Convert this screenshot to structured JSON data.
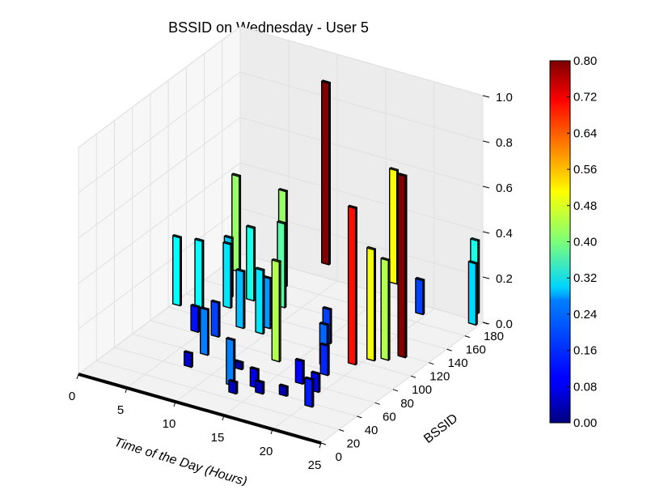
{
  "chart_data": {
    "type": "bar3d",
    "title": "BSSID on Wednesday - User 5",
    "xlabel": "Time of the Day (Hours)",
    "ylabel": "BSSID",
    "zlabel": "",
    "xlim": [
      0,
      25
    ],
    "ylim": [
      0,
      180
    ],
    "zlim": [
      0,
      1.0
    ],
    "xticks": [
      "0",
      "5",
      "10",
      "15",
      "20",
      "25"
    ],
    "yticks": [
      "0",
      "20",
      "40",
      "60",
      "80",
      "100",
      "120",
      "140",
      "160",
      "180"
    ],
    "zticks": [
      "0.0",
      "0.2",
      "0.4",
      "0.6",
      "0.8",
      "1.0"
    ],
    "colormap": "jet",
    "colorbar": {
      "min": 0.0,
      "max": 0.8,
      "ticks": [
        "0.00",
        "0.08",
        "0.16",
        "0.24",
        "0.32",
        "0.40",
        "0.48",
        "0.56",
        "0.64",
        "0.72",
        "0.80"
      ]
    },
    "bars": [
      {
        "x": 0,
        "y": 105,
        "z": 0.3
      },
      {
        "x": 1,
        "y": 160,
        "z": 0.42
      },
      {
        "x": 2,
        "y": 108,
        "z": 0.3
      },
      {
        "x": 3,
        "y": 130,
        "z": 0.26
      },
      {
        "x": 4,
        "y": 118,
        "z": 0.28
      },
      {
        "x": 4,
        "y": 82,
        "z": 0.11
      },
      {
        "x": 5,
        "y": 133,
        "z": 0.32
      },
      {
        "x": 6,
        "y": 158,
        "z": 0.42
      },
      {
        "x": 6,
        "y": 83,
        "z": 0.15
      },
      {
        "x": 7,
        "y": 100,
        "z": 0.25
      },
      {
        "x": 7,
        "y": 60,
        "z": 0.2
      },
      {
        "x": 7,
        "y": 195,
        "z": 0.8
      },
      {
        "x": 7,
        "y": 42,
        "z": 0.06
      },
      {
        "x": 8,
        "y": 135,
        "z": 0.37
      },
      {
        "x": 9,
        "y": 108,
        "z": 0.22
      },
      {
        "x": 9,
        "y": 100,
        "z": 0.28
      },
      {
        "x": 11,
        "y": 55,
        "z": 0.03
      },
      {
        "x": 12,
        "y": 35,
        "z": 0.2
      },
      {
        "x": 13,
        "y": 75,
        "z": 0.44
      },
      {
        "x": 13,
        "y": 27,
        "z": 0.05
      },
      {
        "x": 14,
        "y": 195,
        "z": 0.5
      },
      {
        "x": 14,
        "y": 40,
        "z": 0.08
      },
      {
        "x": 15,
        "y": 110,
        "z": 0.15
      },
      {
        "x": 15,
        "y": 35,
        "z": 0.05
      },
      {
        "x": 17,
        "y": 85,
        "z": 0.18
      },
      {
        "x": 17,
        "y": 58,
        "z": 0.1
      },
      {
        "x": 17,
        "y": 40,
        "z": 0.04
      },
      {
        "x": 18,
        "y": 75,
        "z": 0.13
      },
      {
        "x": 19,
        "y": 95,
        "z": 0.69
      },
      {
        "x": 19,
        "y": 170,
        "z": 0.15
      },
      {
        "x": 19,
        "y": 54,
        "z": 0.08
      },
      {
        "x": 20,
        "y": 105,
        "z": 0.49
      },
      {
        "x": 20,
        "y": 36,
        "z": 0.12
      },
      {
        "x": 21,
        "y": 110,
        "z": 0.44
      },
      {
        "x": 22,
        "y": 118,
        "z": 0.8
      },
      {
        "x": 23,
        "y": 188,
        "z": 0.32
      },
      {
        "x": 24,
        "y": 175,
        "z": 0.27
      }
    ]
  }
}
